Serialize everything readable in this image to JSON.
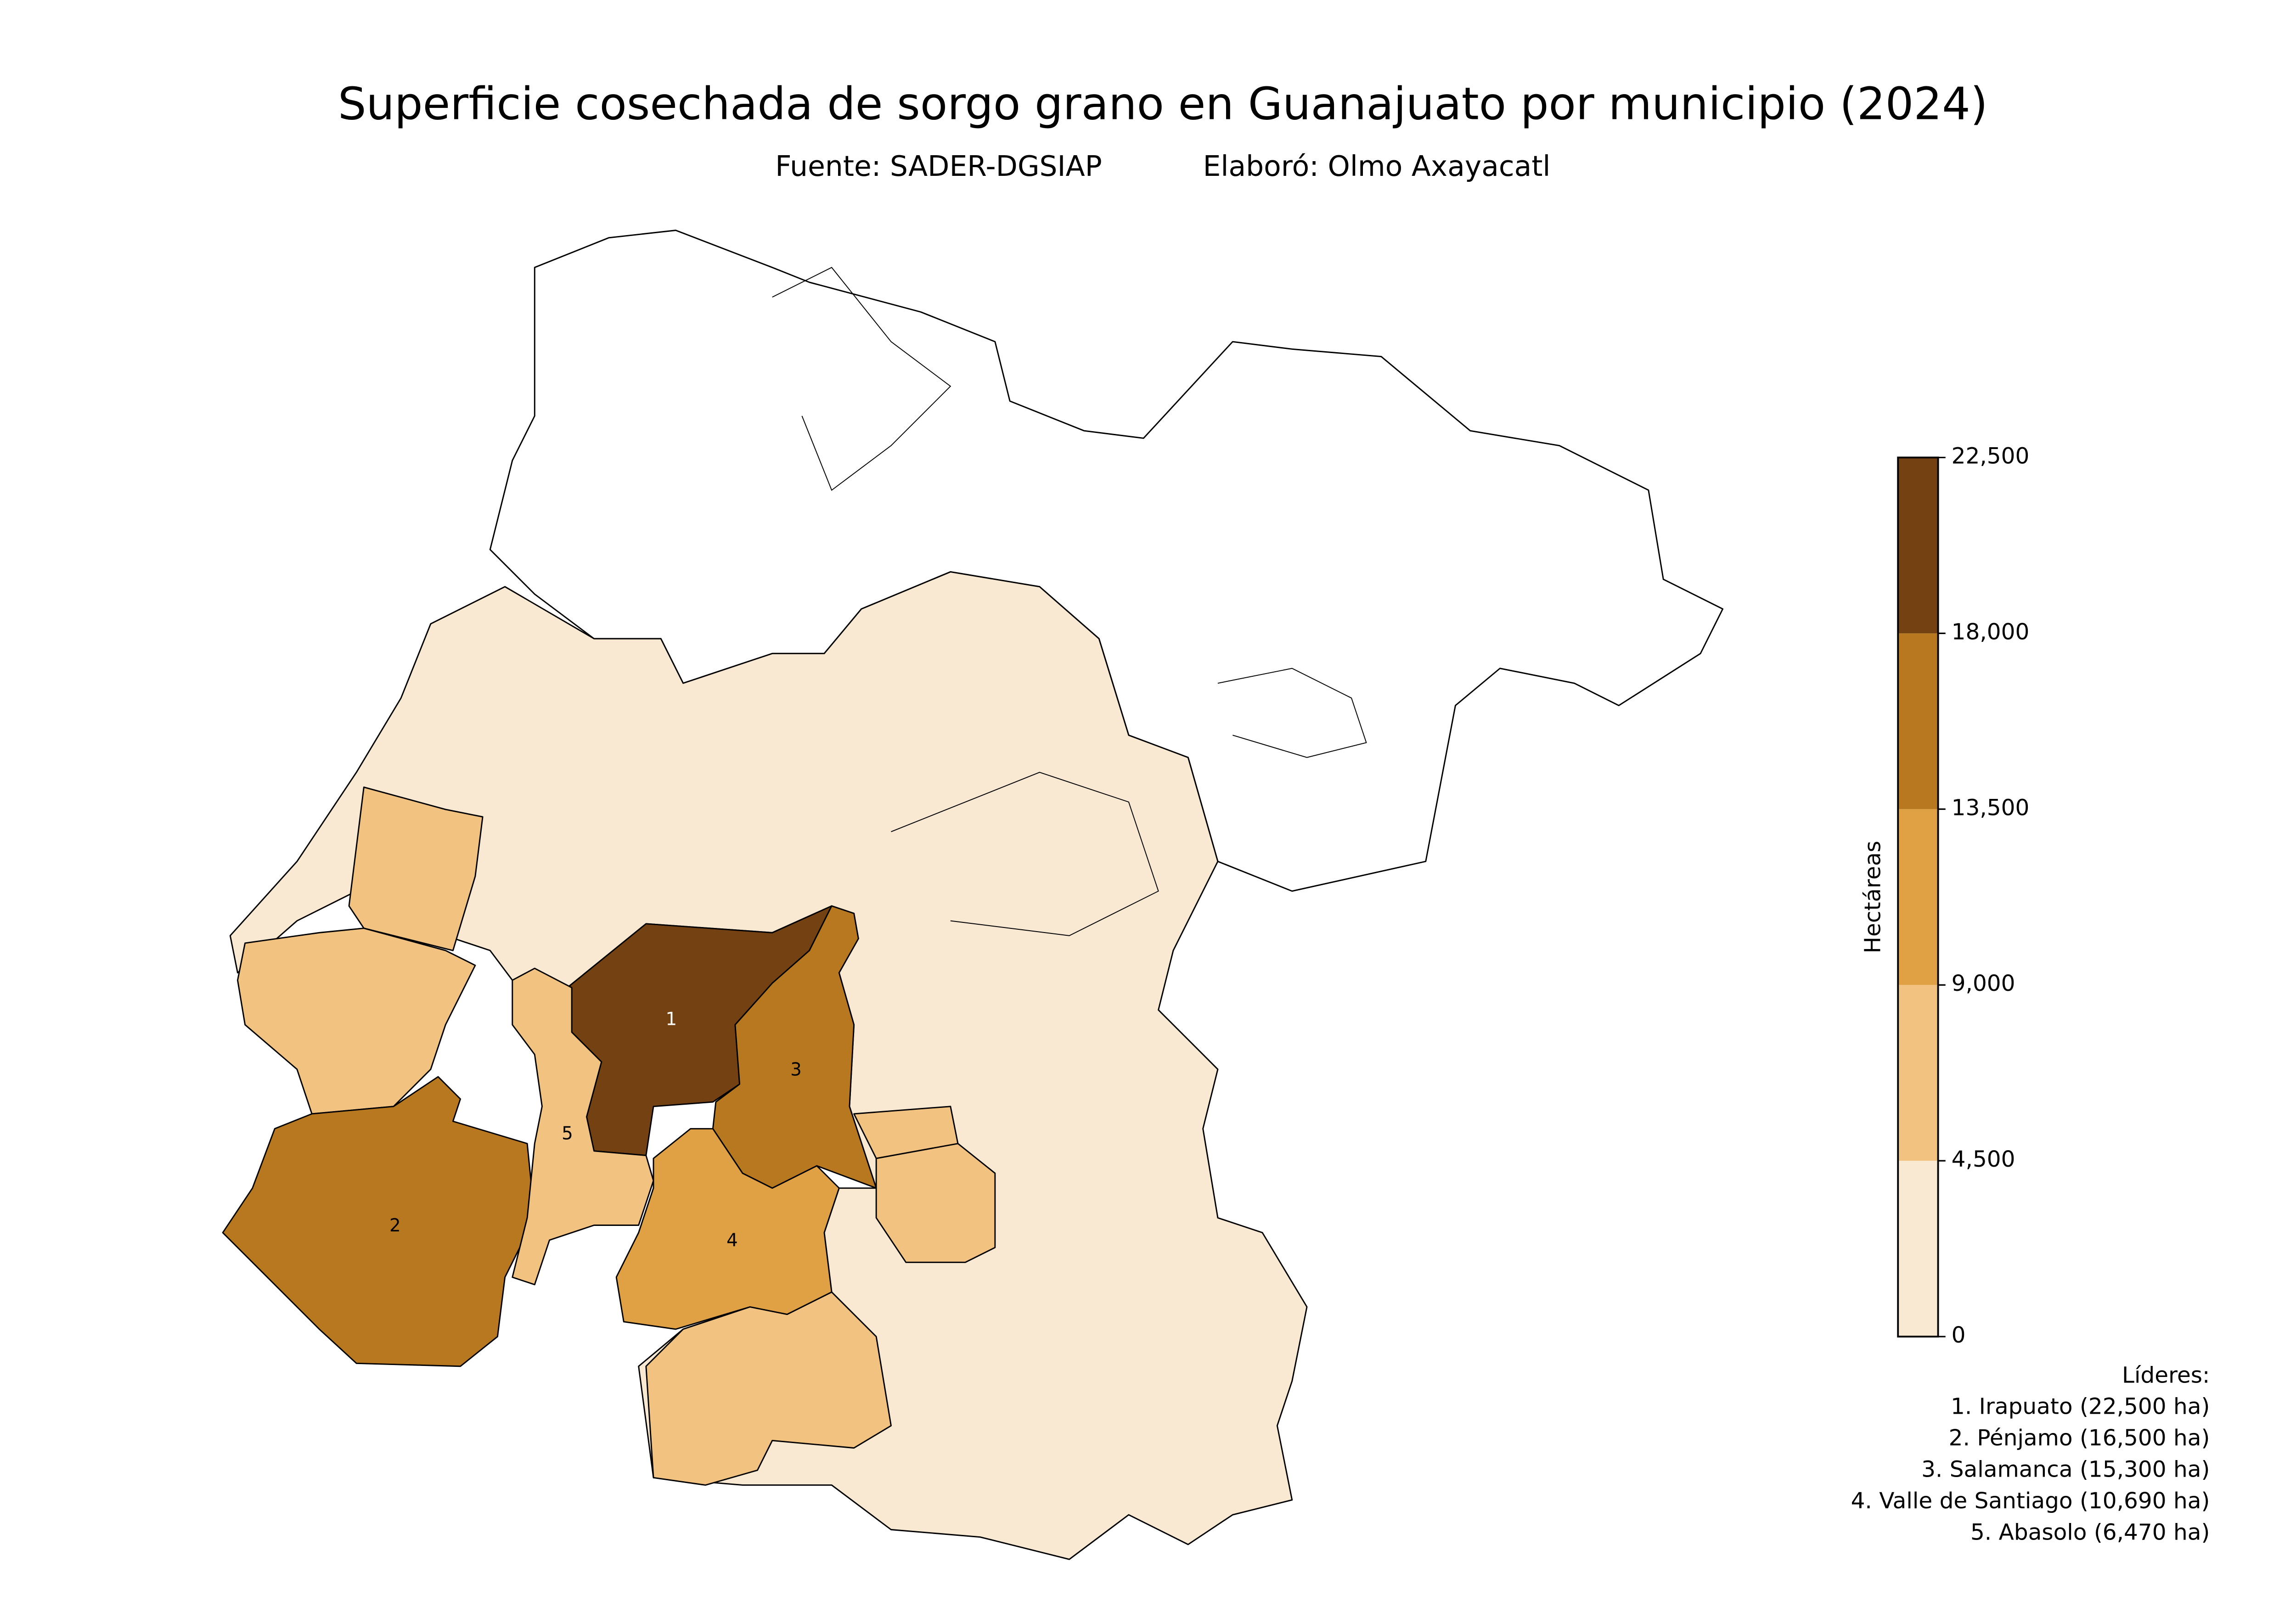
{
  "chart_data": {
    "type": "choropleth",
    "title": "Superficie cosechada de sorgo grano en Guanajuato por municipio (2024)",
    "subtitle": [
      "Fuente: SADER-DGSIAP",
      "Elaboró: Olmo Axayacatl"
    ],
    "colorbar": {
      "label": "Hectáreas",
      "lim": [
        0,
        22500
      ],
      "ticks": [
        0,
        {
          "value": 4500,
          "label": "4,500"
        },
        {
          "value": 9000,
          "label": "9,000"
        },
        {
          "value": 13500,
          "label": "13,500"
        },
        {
          "value": 18000,
          "label": "18,000"
        },
        {
          "value": 22500,
          "label": "22,500"
        }
      ],
      "colors": [
        "#f9e9d2",
        "#f2c280",
        "#e0a144",
        "#b87820",
        "#744212"
      ]
    },
    "legend_title": "Líderes:",
    "leaders": [
      {
        "rank": 1,
        "value": 22500,
        "label": "1. Irapuato (22,500 ha)"
      },
      {
        "rank": 2,
        "value": 16500,
        "label": "2. Pénjamo (16,500 ha)"
      },
      {
        "rank": 3,
        "value": 15300,
        "label": "3. Salamanca (15,300 ha)"
      },
      {
        "rank": 4,
        "value": 10690,
        "label": "4. Valle de Santiago (10,690 ha)"
      },
      {
        "rank": 5,
        "value": 6470,
        "label": "5. Abasolo (6,470 ha)"
      }
    ]
  }
}
